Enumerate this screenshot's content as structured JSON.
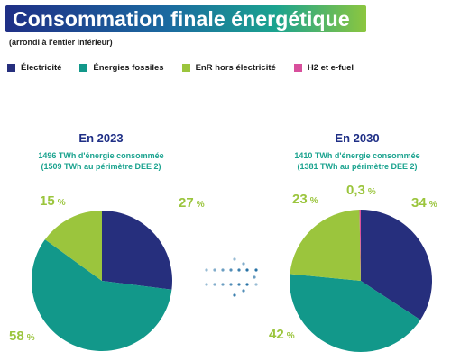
{
  "title": "Consommation finale énergétique",
  "subtitle": "(arrondi à l'entier inférieur)",
  "legend": [
    {
      "label": "Électricité",
      "color": "#262f7d"
    },
    {
      "label": "Énergies fossiles",
      "color": "#12988a"
    },
    {
      "label": "EnR hors électricité",
      "color": "#9bc53d"
    },
    {
      "label": "H2 et e-fuel",
      "color": "#d84f9c"
    }
  ],
  "pct_label_color": "#9bc53d",
  "arrow_dot_color": "#1b6aa0",
  "chart_data": [
    {
      "type": "pie",
      "title": "En 2023",
      "desc_line1": "1496 TWh d'énergie consommée",
      "desc_line2": "(1509 TWh au périmètre DEE 2)",
      "categories": [
        "Électricité",
        "Énergies fossiles",
        "EnR hors électricité"
      ],
      "values": [
        27,
        58,
        15
      ],
      "labels": [
        "27",
        "58",
        "15"
      ]
    },
    {
      "type": "pie",
      "title": "En 2030",
      "desc_line1": "1410 TWh d'énergie consommée",
      "desc_line2": "(1381 TWh au périmètre DEE 2)",
      "categories": [
        "Électricité",
        "Énergies fossiles",
        "EnR hors électricité",
        "H2 et e-fuel"
      ],
      "values": [
        34,
        42,
        23,
        0.3
      ],
      "labels": [
        "34",
        "42",
        "23",
        "0,3"
      ]
    }
  ]
}
